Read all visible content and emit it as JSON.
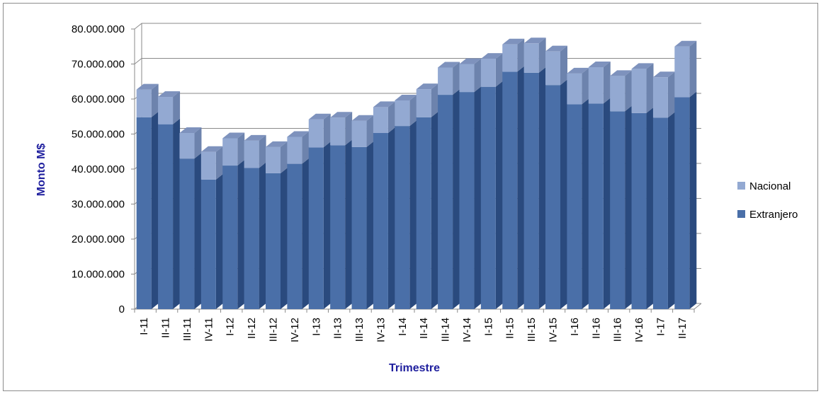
{
  "chart_data": {
    "type": "bar",
    "stacked": true,
    "three_d": true,
    "title": "",
    "xlabel": "Trimestre",
    "ylabel": "Monto  M$",
    "ylim": [
      0,
      80000000
    ],
    "yticks": [
      0,
      10000000,
      20000000,
      30000000,
      40000000,
      50000000,
      60000000,
      70000000,
      80000000
    ],
    "ytick_labels": [
      "0",
      "10.000.000",
      "20.000.000",
      "30.000.000",
      "40.000.000",
      "50.000.000",
      "60.000.000",
      "70.000.000",
      "80.000.000"
    ],
    "grid": true,
    "legend_position": "right",
    "categories": [
      "I-11",
      "II-11",
      "III-11",
      "IV-11",
      "I-12",
      "II-12",
      "III-12",
      "IV-12",
      "I-13",
      "II-13",
      "III-13",
      "IV-13",
      "I-14",
      "II-14",
      "III-14",
      "IV-14",
      "I-15",
      "II-15",
      "III-15",
      "IV-15",
      "I-16",
      "II-16",
      "III-16",
      "IV-16",
      "I-17",
      "II-17"
    ],
    "series": [
      {
        "name": "Extranjero",
        "color": "#4a6fa8",
        "values": [
          54800000,
          52800000,
          43000000,
          37000000,
          41000000,
          40300000,
          38800000,
          41500000,
          46200000,
          46800000,
          46300000,
          50300000,
          52300000,
          54800000,
          61200000,
          62000000,
          63500000,
          67800000,
          67500000,
          64000000,
          58500000,
          58700000,
          56500000,
          56000000,
          54700000,
          60500000
        ]
      },
      {
        "name": "Nacional",
        "color": "#93a9d2",
        "values": [
          7900000,
          7800000,
          7300000,
          7900000,
          7800000,
          7800000,
          7500000,
          7700000,
          8000000,
          7900000,
          7500000,
          7400000,
          7300000,
          8000000,
          7800000,
          8000000,
          8000000,
          7800000,
          8400000,
          9600000,
          8800000,
          10400000,
          10100000,
          12600000,
          11500000,
          14500000
        ]
      }
    ]
  },
  "colors": {
    "extranjero_side": "#2a4a7e",
    "nacional_side": "#6d83ad",
    "gridline": "#8a8a8a",
    "axis_title": "#1f1f9e"
  }
}
